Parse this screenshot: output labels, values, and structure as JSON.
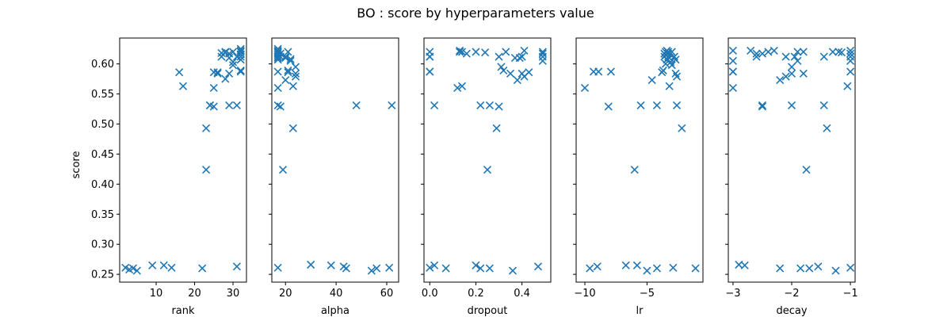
{
  "figure": {
    "title": "BO : score by hyperparameters value"
  },
  "chart_data": {
    "type": "scatter",
    "title": "BO : score by hyperparameters value",
    "ylabel": "score",
    "ylim": [
      0.237,
      0.643
    ],
    "yticks": [
      0.25,
      0.3,
      0.35,
      0.4,
      0.45,
      0.5,
      0.55,
      0.6
    ],
    "ytick_labels": [
      "0.25",
      "0.30",
      "0.35",
      "0.40",
      "0.45",
      "0.50",
      "0.55",
      "0.60"
    ],
    "marker": "x",
    "color": "#1f77b4",
    "grid": false,
    "subplots": [
      {
        "xlabel": "rank",
        "xlim": [
          0.5,
          33.5
        ],
        "xticks": [
          10,
          20,
          30
        ],
        "xtick_labels": [
          "10",
          "20",
          "30"
        ],
        "points": [
          [
            2,
            0.261
          ],
          [
            3,
            0.258
          ],
          [
            4,
            0.26
          ],
          [
            5,
            0.256
          ],
          [
            9,
            0.265
          ],
          [
            12,
            0.265
          ],
          [
            14,
            0.261
          ],
          [
            16,
            0.586
          ],
          [
            17,
            0.563
          ],
          [
            22,
            0.26
          ],
          [
            23,
            0.424
          ],
          [
            23,
            0.493
          ],
          [
            24,
            0.531
          ],
          [
            24,
            0.531
          ],
          [
            25,
            0.529
          ],
          [
            25,
            0.56
          ],
          [
            25,
            0.586
          ],
          [
            26,
            0.584
          ],
          [
            26,
            0.586
          ],
          [
            27,
            0.612
          ],
          [
            27,
            0.618
          ],
          [
            28,
            0.575
          ],
          [
            28,
            0.62
          ],
          [
            28,
            0.619
          ],
          [
            29,
            0.584
          ],
          [
            29,
            0.531
          ],
          [
            29,
            0.61
          ],
          [
            29,
            0.617
          ],
          [
            30,
            0.598
          ],
          [
            30,
            0.62
          ],
          [
            30,
            0.603
          ],
          [
            31,
            0.531
          ],
          [
            31,
            0.612
          ],
          [
            31,
            0.263
          ],
          [
            32,
            0.587
          ],
          [
            32,
            0.607
          ],
          [
            32,
            0.612
          ],
          [
            32,
            0.616
          ],
          [
            32,
            0.62
          ],
          [
            32,
            0.622
          ],
          [
            32,
            0.625
          ],
          [
            32,
            0.589
          ]
        ]
      },
      {
        "xlabel": "alpha",
        "xlim": [
          14.6,
          64.7
        ],
        "xticks": [
          20,
          40,
          60
        ],
        "xtick_labels": [
          "20",
          "40",
          "60"
        ],
        "points": [
          [
            17,
            0.261
          ],
          [
            17,
            0.587
          ],
          [
            17,
            0.56
          ],
          [
            17,
            0.531
          ],
          [
            17,
            0.62
          ],
          [
            17,
            0.618
          ],
          [
            17,
            0.615
          ],
          [
            17,
            0.612
          ],
          [
            17,
            0.622
          ],
          [
            17,
            0.625
          ],
          [
            17,
            0.61
          ],
          [
            17,
            0.607
          ],
          [
            18,
            0.612
          ],
          [
            18,
            0.617
          ],
          [
            18,
            0.529
          ],
          [
            19,
            0.424
          ],
          [
            20,
            0.612
          ],
          [
            20,
            0.573
          ],
          [
            20,
            0.61
          ],
          [
            21,
            0.586
          ],
          [
            21,
            0.62
          ],
          [
            21,
            0.589
          ],
          [
            22,
            0.608
          ],
          [
            22,
            0.605
          ],
          [
            23,
            0.493
          ],
          [
            23,
            0.563
          ],
          [
            24,
            0.595
          ],
          [
            24,
            0.584
          ],
          [
            24,
            0.579
          ],
          [
            30,
            0.266
          ],
          [
            38,
            0.265
          ],
          [
            43,
            0.263
          ],
          [
            44,
            0.26
          ],
          [
            48,
            0.531
          ],
          [
            54,
            0.256
          ],
          [
            56,
            0.26
          ],
          [
            61,
            0.261
          ],
          [
            62,
            0.531
          ]
        ]
      },
      {
        "xlabel": "dropout",
        "xlim": [
          -0.025,
          0.525
        ],
        "xticks": [
          0.0,
          0.2,
          0.4
        ],
        "xtick_labels": [
          "0.0",
          "0.2",
          "0.4"
        ],
        "points": [
          [
            0.0,
            0.261
          ],
          [
            0.0,
            0.587
          ],
          [
            0.0,
            0.612
          ],
          [
            0.0,
            0.62
          ],
          [
            0.0,
            0.587
          ],
          [
            0.0,
            0.612
          ],
          [
            0.02,
            0.265
          ],
          [
            0.02,
            0.531
          ],
          [
            0.07,
            0.26
          ],
          [
            0.12,
            0.56
          ],
          [
            0.13,
            0.62
          ],
          [
            0.13,
            0.622
          ],
          [
            0.14,
            0.563
          ],
          [
            0.14,
            0.62
          ],
          [
            0.16,
            0.617
          ],
          [
            0.2,
            0.265
          ],
          [
            0.2,
            0.62
          ],
          [
            0.22,
            0.531
          ],
          [
            0.22,
            0.26
          ],
          [
            0.24,
            0.619
          ],
          [
            0.25,
            0.424
          ],
          [
            0.26,
            0.531
          ],
          [
            0.26,
            0.26
          ],
          [
            0.29,
            0.493
          ],
          [
            0.3,
            0.612
          ],
          [
            0.3,
            0.529
          ],
          [
            0.31,
            0.595
          ],
          [
            0.32,
            0.589
          ],
          [
            0.33,
            0.62
          ],
          [
            0.35,
            0.584
          ],
          [
            0.36,
            0.256
          ],
          [
            0.37,
            0.61
          ],
          [
            0.38,
            0.573
          ],
          [
            0.39,
            0.61
          ],
          [
            0.4,
            0.584
          ],
          [
            0.4,
            0.612
          ],
          [
            0.41,
            0.579
          ],
          [
            0.41,
            0.622
          ],
          [
            0.43,
            0.586
          ],
          [
            0.47,
            0.263
          ],
          [
            0.49,
            0.605
          ],
          [
            0.49,
            0.612
          ],
          [
            0.49,
            0.62
          ],
          [
            0.49,
            0.617
          ]
        ]
      },
      {
        "xlabel": "lr",
        "xlim": [
          -10.7,
          -0.5
        ],
        "xticks": [
          -10,
          -5
        ],
        "xtick_labels": [
          "−10",
          "−5"
        ],
        "points": [
          [
            -9.6,
            0.26
          ],
          [
            -10,
            0.56
          ],
          [
            -9.3,
            0.587
          ],
          [
            -9.0,
            0.263
          ],
          [
            -8.9,
            0.587
          ],
          [
            -8.1,
            0.529
          ],
          [
            -7.9,
            0.587
          ],
          [
            -6.7,
            0.265
          ],
          [
            -6.0,
            0.424
          ],
          [
            -5.8,
            0.265
          ],
          [
            -5.5,
            0.531
          ],
          [
            -5.0,
            0.256
          ],
          [
            -4.6,
            0.573
          ],
          [
            -4.2,
            0.26
          ],
          [
            -4.2,
            0.531
          ],
          [
            -3.8,
            0.586
          ],
          [
            -3.7,
            0.589
          ],
          [
            -3.6,
            0.612
          ],
          [
            -3.6,
            0.617
          ],
          [
            -3.5,
            0.62
          ],
          [
            -3.5,
            0.615
          ],
          [
            -3.5,
            0.6
          ],
          [
            -3.4,
            0.622
          ],
          [
            -3.4,
            0.607
          ],
          [
            -3.3,
            0.612
          ],
          [
            -3.3,
            0.617
          ],
          [
            -3.3,
            0.62
          ],
          [
            -3.2,
            0.563
          ],
          [
            -3.2,
            0.61
          ],
          [
            -3.1,
            0.603
          ],
          [
            -3.0,
            0.598
          ],
          [
            -3.0,
            0.62
          ],
          [
            -2.9,
            0.261
          ],
          [
            -2.8,
            0.612
          ],
          [
            -2.7,
            0.607
          ],
          [
            -2.7,
            0.584
          ],
          [
            -2.6,
            0.531
          ],
          [
            -2.6,
            0.579
          ],
          [
            -2.2,
            0.493
          ],
          [
            -1.1,
            0.26
          ]
        ]
      },
      {
        "xlabel": "decay",
        "xlim": [
          -3.08,
          -0.92
        ],
        "xticks": [
          -3,
          -2,
          -1
        ],
        "xtick_labels": [
          "−3",
          "−2",
          "−1"
        ],
        "points": [
          [
            -3.0,
            0.56
          ],
          [
            -3.0,
            0.587
          ],
          [
            -3.0,
            0.587
          ],
          [
            -3.0,
            0.605
          ],
          [
            -3.0,
            0.622
          ],
          [
            -2.9,
            0.266
          ],
          [
            -2.8,
            0.265
          ],
          [
            -2.7,
            0.622
          ],
          [
            -2.6,
            0.612
          ],
          [
            -2.6,
            0.617
          ],
          [
            -2.5,
            0.531
          ],
          [
            -2.5,
            0.529
          ],
          [
            -2.5,
            0.617
          ],
          [
            -2.4,
            0.62
          ],
          [
            -2.3,
            0.622
          ],
          [
            -2.2,
            0.26
          ],
          [
            -2.2,
            0.573
          ],
          [
            -2.1,
            0.612
          ],
          [
            -2.1,
            0.579
          ],
          [
            -2.0,
            0.531
          ],
          [
            -2.0,
            0.595
          ],
          [
            -2.0,
            0.584
          ],
          [
            -1.95,
            0.612
          ],
          [
            -1.9,
            0.62
          ],
          [
            -1.9,
            0.605
          ],
          [
            -1.85,
            0.26
          ],
          [
            -1.8,
            0.584
          ],
          [
            -1.8,
            0.62
          ],
          [
            -1.75,
            0.424
          ],
          [
            -1.7,
            0.26
          ],
          [
            -1.55,
            0.263
          ],
          [
            -1.45,
            0.531
          ],
          [
            -1.45,
            0.612
          ],
          [
            -1.4,
            0.493
          ],
          [
            -1.3,
            0.62
          ],
          [
            -1.25,
            0.256
          ],
          [
            -1.2,
            0.62
          ],
          [
            -1.15,
            0.619
          ],
          [
            -1.05,
            0.563
          ],
          [
            -1.0,
            0.261
          ],
          [
            -1.0,
            0.587
          ],
          [
            -1.0,
            0.605
          ],
          [
            -1.0,
            0.612
          ],
          [
            -1.0,
            0.617
          ],
          [
            -1.0,
            0.622
          ]
        ]
      }
    ]
  }
}
